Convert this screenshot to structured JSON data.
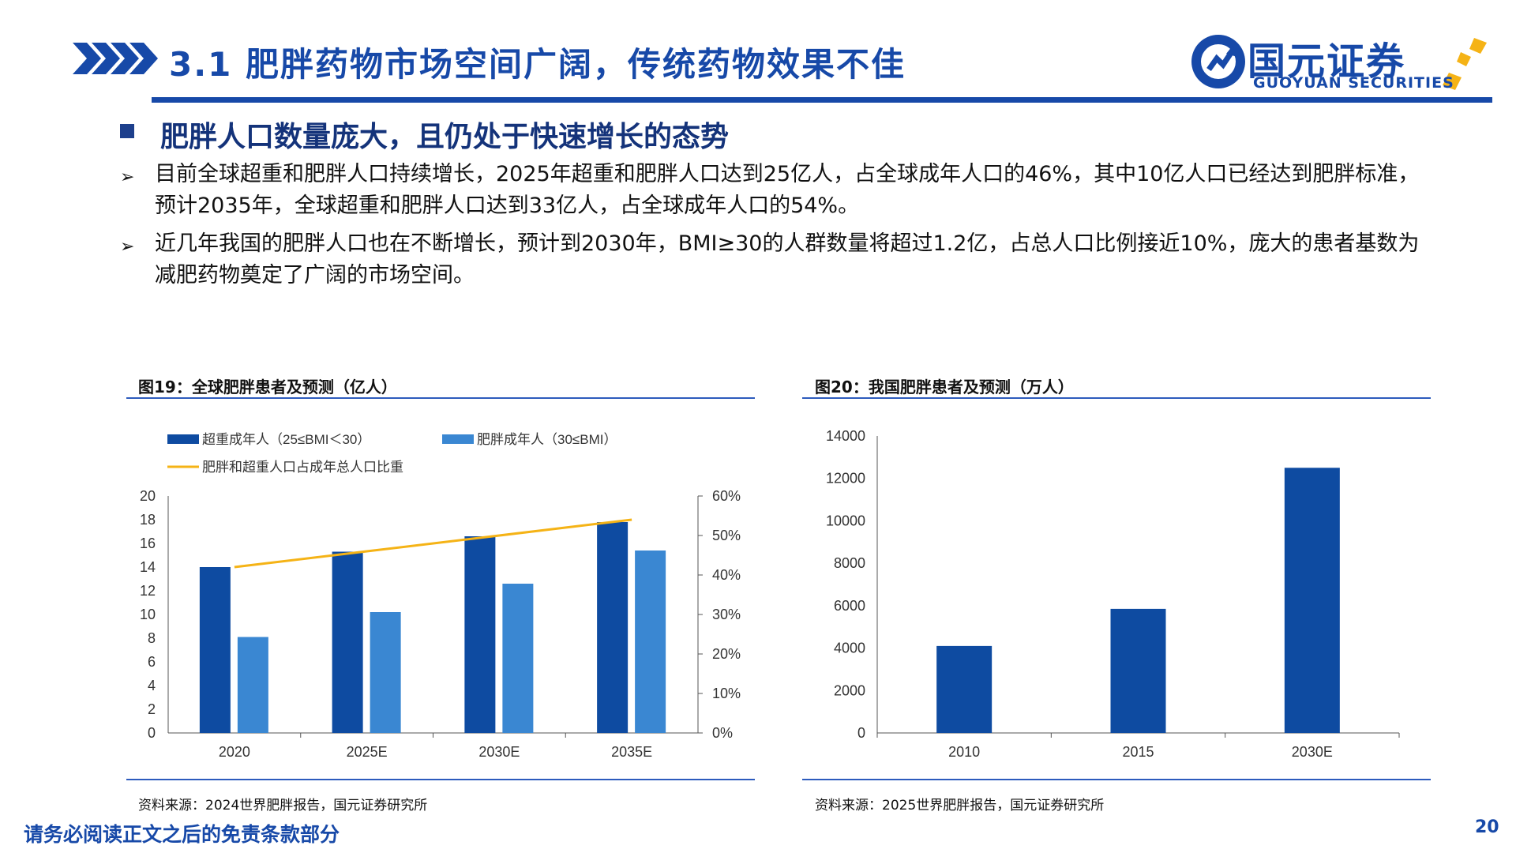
{
  "header": {
    "title": "3.1 肥胖药物市场空间广阔，传统药物效果不佳",
    "logo_cn": "国元证券",
    "logo_en": "GUOYUAN SECURITIES"
  },
  "section": {
    "title": "肥胖人口数量庞大，且仍处于快速增长的态势"
  },
  "paragraphs": [
    "目前全球超重和肥胖人口持续增长，2025年超重和肥胖人口达到25亿人，占全球成年人口的46%，其中10亿人口已经达到肥胖标准，预计2035年，全球超重和肥胖人口达到33亿人，占全球成年人口的54%。",
    "近几年我国的肥胖人口也在不断增长，预计到2030年，BMI≥30的人群数量将超过1.2亿，占总人口比例接近10%，庞大的患者基数为减肥药物奠定了广阔的市场空间。"
  ],
  "figures": [
    {
      "title": "图19：全球肥胖患者及预测（亿人）",
      "source": "资料来源：2024世界肥胖报告，国元证券研究所"
    },
    {
      "title": "图20：我国肥胖患者及预测（万人）",
      "source": "资料来源：2025世界肥胖报告，国元证券研究所"
    }
  ],
  "chart_data": [
    {
      "type": "bar",
      "categories": [
        "2020",
        "2025E",
        "2030E",
        "2035E"
      ],
      "series": [
        {
          "name": "超重成年人（25≤BMI＜30）",
          "type": "bar",
          "axis": "left",
          "color": "#0e4ba1",
          "values": [
            14.0,
            15.3,
            16.6,
            17.8
          ]
        },
        {
          "name": "肥胖成年人（30≤BMI）",
          "type": "bar",
          "axis": "left",
          "color": "#3a87d2",
          "values": [
            8.1,
            10.2,
            12.6,
            15.4
          ]
        },
        {
          "name": "肥胖和超重人口占成年总人口比重",
          "type": "line",
          "axis": "right",
          "color": "#f5b316",
          "values": [
            0.42,
            0.46,
            0.5,
            0.54
          ]
        }
      ],
      "left_axis": {
        "min": 0,
        "max": 20,
        "ticks": [
          "0",
          "2",
          "4",
          "6",
          "8",
          "10",
          "12",
          "14",
          "16",
          "18",
          "20"
        ]
      },
      "right_axis": {
        "min": 0,
        "max": 0.6,
        "ticks": [
          "0%",
          "10%",
          "20%",
          "30%",
          "40%",
          "50%",
          "60%"
        ]
      },
      "legend_position": "top-left"
    },
    {
      "type": "bar",
      "categories": [
        "2010",
        "2015",
        "2030E"
      ],
      "series": [
        {
          "type": "bar",
          "color": "#0e4ba1",
          "values": [
            4100,
            5850,
            12500
          ]
        }
      ],
      "left_axis": {
        "min": 0,
        "max": 14000,
        "ticks": [
          "0",
          "2000",
          "4000",
          "6000",
          "8000",
          "10000",
          "12000",
          "14000"
        ]
      }
    }
  ],
  "footer": {
    "disclaimer": "请务必阅读正文之后的免责条款部分",
    "page_number": "20"
  },
  "colors": {
    "brand_blue": "#1749a8",
    "accent_gold": "#f5b316"
  }
}
